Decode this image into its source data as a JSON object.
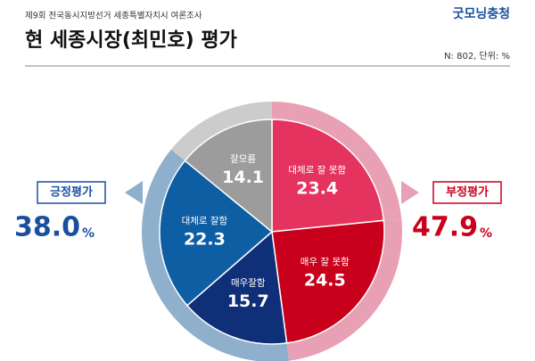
{
  "header": {
    "survey": "제9회 전국동시지방선거 세종특별자치시 여론조사",
    "title": "현 세종시장(최민호) 평가",
    "logo": "굿모닝충청",
    "note": "N: 802, 단위: %"
  },
  "chart_data": {
    "type": "pie",
    "categories": [
      "대체로 잘 못함",
      "매우 잘 못함",
      "매우잘함",
      "대체로 잘함",
      "잘모름"
    ],
    "values": [
      23.4,
      24.5,
      15.7,
      22.3,
      14.1
    ],
    "colors": [
      "#e5335f",
      "#c8001b",
      "#0f2f78",
      "#0e5ea4",
      "#9c9c9c"
    ]
  },
  "summary": {
    "positive": {
      "label": "긍정평가",
      "value": 38.0,
      "value_label": "38.0",
      "unit": "%",
      "color": "#1a4fa0"
    },
    "negative": {
      "label": "부정평가",
      "value": 47.9,
      "value_label": "47.9",
      "unit": "%",
      "color": "#c8001b"
    }
  }
}
